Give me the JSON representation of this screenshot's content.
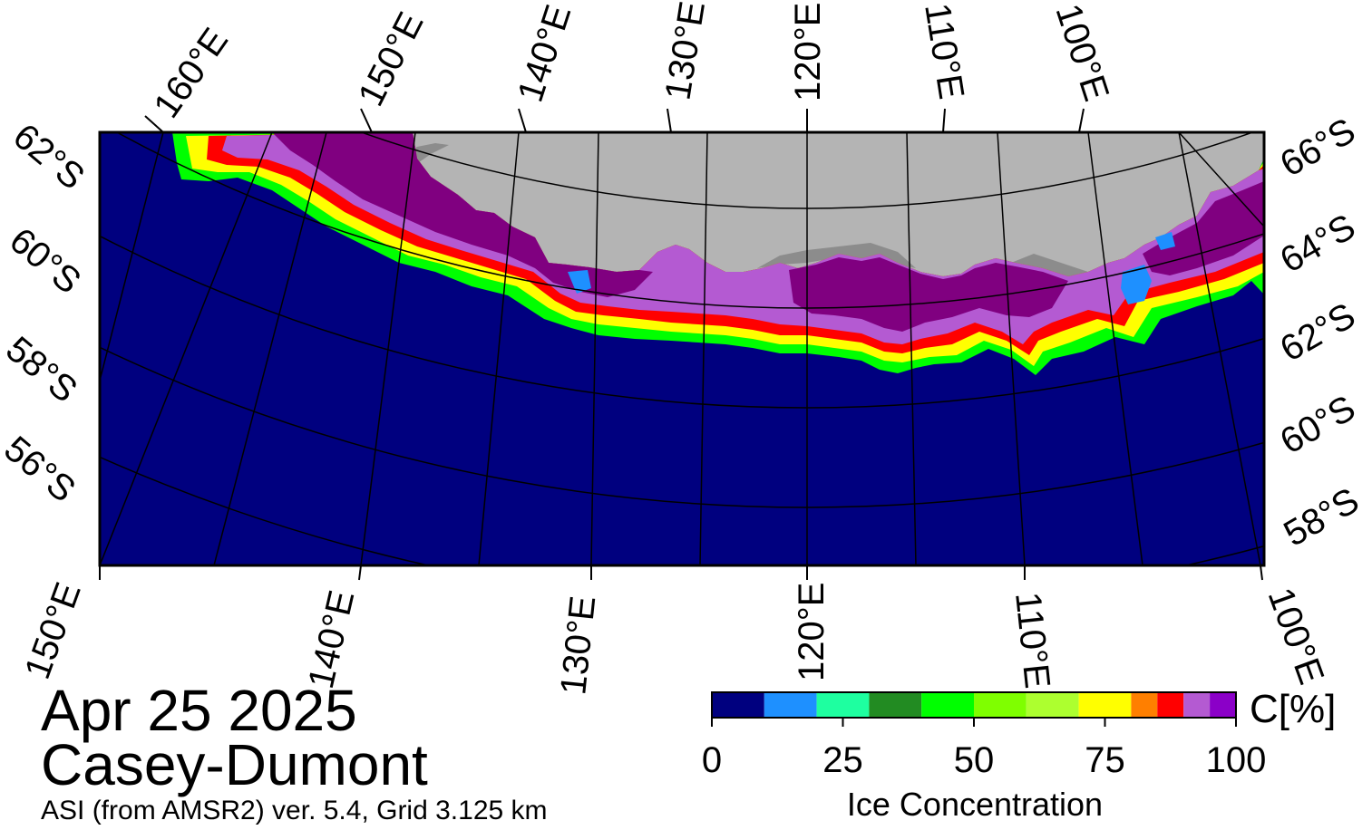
{
  "map": {
    "date": "Apr 25 2025",
    "region": "Casey-Dumont",
    "source": "ASI (from AMSR2) ver. 5.4,  Grid 3.125 km",
    "colors": {
      "ocean": "#00007f",
      "land": "#b4b4b4",
      "land_dark": "#8c8c8c",
      "graticule": "#000000"
    },
    "top_lon_labels": [
      "160°E",
      "150°E",
      "140°E",
      "130°E",
      "120°E",
      "110°E",
      "100°E"
    ],
    "bottom_lon_labels": [
      "150°E",
      "140°E",
      "130°E",
      "120°E",
      "110°E",
      "100°E"
    ],
    "left_lat_labels": [
      "62°S",
      "60°S",
      "58°S",
      "56°S"
    ],
    "right_lat_labels": [
      "66°S",
      "64°S",
      "62°S",
      "60°S",
      "58°S"
    ]
  },
  "colorbar": {
    "title": "Ice Concentration",
    "unit": "C[%]",
    "ticks": [
      "0",
      "25",
      "50",
      "75",
      "100"
    ],
    "bins": [
      {
        "from": 0,
        "to": 10,
        "color": "#00007f"
      },
      {
        "from": 10,
        "to": 20,
        "color": "#1e90ff"
      },
      {
        "from": 20,
        "to": 30,
        "color": "#1effa0"
      },
      {
        "from": 30,
        "to": 40,
        "color": "#228b22"
      },
      {
        "from": 40,
        "to": 50,
        "color": "#00ff00"
      },
      {
        "from": 50,
        "to": 60,
        "color": "#7fff00"
      },
      {
        "from": 60,
        "to": 70,
        "color": "#adff2f"
      },
      {
        "from": 70,
        "to": 80,
        "color": "#ffff00"
      },
      {
        "from": 80,
        "to": 85,
        "color": "#ff7f00"
      },
      {
        "from": 85,
        "to": 90,
        "color": "#ff0000"
      },
      {
        "from": 90,
        "to": 95,
        "color": "#b45ad2"
      },
      {
        "from": 95,
        "to": 100,
        "color": "#8b00c8"
      }
    ],
    "ice_palette": {
      "purple": "#800080",
      "violet": "#b45ad2",
      "red": "#ff0000",
      "yellow": "#ffff00",
      "green": "#00ff00",
      "blue": "#1e90ff"
    }
  }
}
